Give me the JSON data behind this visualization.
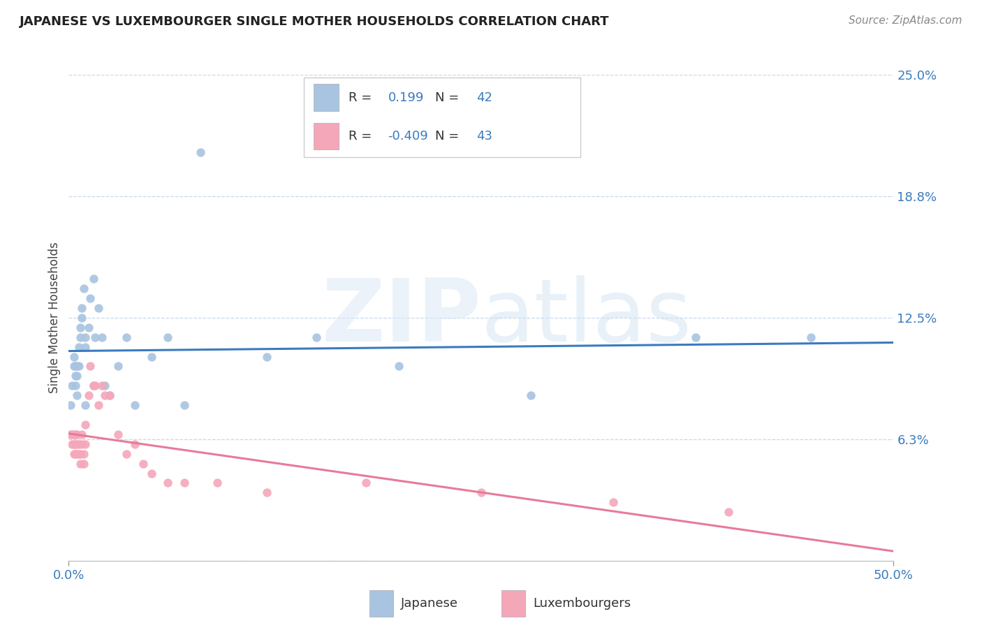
{
  "title": "JAPANESE VS LUXEMBOURGER SINGLE MOTHER HOUSEHOLDS CORRELATION CHART",
  "source": "Source: ZipAtlas.com",
  "ylabel": "Single Mother Households",
  "xlim": [
    0.0,
    0.5
  ],
  "ylim": [
    0.0,
    0.25
  ],
  "yticks": [
    0.0,
    0.0625,
    0.125,
    0.1875,
    0.25
  ],
  "ytick_labels": [
    "",
    "6.3%",
    "12.5%",
    "18.8%",
    "25.0%"
  ],
  "xtick_vals": [
    0.0,
    0.5
  ],
  "xtick_labels": [
    "0.0%",
    "50.0%"
  ],
  "r_japanese": 0.199,
  "n_japanese": 42,
  "r_luxembourger": -0.409,
  "n_luxembourger": 43,
  "color_japanese": "#a8c4e0",
  "color_luxembourger": "#f4a7b9",
  "line_color_japanese": "#3a7bbf",
  "line_color_luxembourger": "#e87a99",
  "grid_color": "#c5d8ea",
  "japanese_x": [
    0.001,
    0.002,
    0.003,
    0.003,
    0.004,
    0.004,
    0.004,
    0.005,
    0.005,
    0.005,
    0.006,
    0.006,
    0.007,
    0.007,
    0.008,
    0.008,
    0.009,
    0.01,
    0.01,
    0.01,
    0.012,
    0.013,
    0.015,
    0.015,
    0.016,
    0.018,
    0.02,
    0.022,
    0.025,
    0.03,
    0.035,
    0.04,
    0.05,
    0.06,
    0.07,
    0.08,
    0.12,
    0.15,
    0.2,
    0.28,
    0.38,
    0.45
  ],
  "japanese_y": [
    0.08,
    0.09,
    0.1,
    0.105,
    0.09,
    0.1,
    0.095,
    0.085,
    0.095,
    0.1,
    0.11,
    0.1,
    0.12,
    0.115,
    0.13,
    0.125,
    0.14,
    0.11,
    0.115,
    0.08,
    0.12,
    0.135,
    0.145,
    0.09,
    0.115,
    0.13,
    0.115,
    0.09,
    0.085,
    0.1,
    0.115,
    0.08,
    0.105,
    0.115,
    0.08,
    0.21,
    0.105,
    0.115,
    0.1,
    0.085,
    0.115,
    0.115
  ],
  "luxembourger_x": [
    0.001,
    0.002,
    0.002,
    0.003,
    0.003,
    0.003,
    0.004,
    0.004,
    0.004,
    0.005,
    0.005,
    0.005,
    0.006,
    0.006,
    0.007,
    0.007,
    0.008,
    0.008,
    0.009,
    0.009,
    0.01,
    0.01,
    0.012,
    0.013,
    0.015,
    0.016,
    0.018,
    0.02,
    0.022,
    0.025,
    0.03,
    0.035,
    0.04,
    0.045,
    0.05,
    0.06,
    0.07,
    0.09,
    0.12,
    0.18,
    0.25,
    0.33,
    0.4
  ],
  "luxembourger_y": [
    0.065,
    0.06,
    0.065,
    0.055,
    0.06,
    0.065,
    0.055,
    0.06,
    0.065,
    0.06,
    0.055,
    0.065,
    0.055,
    0.06,
    0.05,
    0.055,
    0.06,
    0.065,
    0.05,
    0.055,
    0.06,
    0.07,
    0.085,
    0.1,
    0.09,
    0.09,
    0.08,
    0.09,
    0.085,
    0.085,
    0.065,
    0.055,
    0.06,
    0.05,
    0.045,
    0.04,
    0.04,
    0.04,
    0.035,
    0.04,
    0.035,
    0.03,
    0.025
  ]
}
